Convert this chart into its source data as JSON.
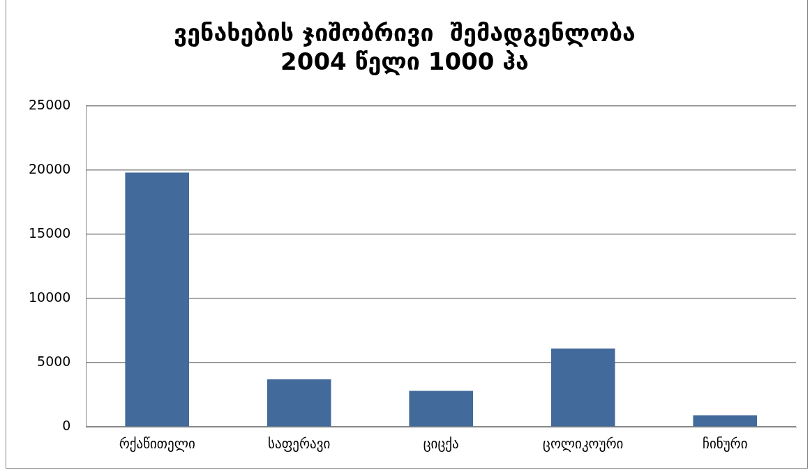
{
  "chart_data": {
    "type": "bar",
    "title": "ვენახების ჯიშობრივი  შემადგენლობა\n2004 წელი 1000 ჰა",
    "categories": [
      "რქაწითელი",
      "საფერავი",
      "ციცქა",
      "ცოლიკოური",
      "ჩინური"
    ],
    "values": [
      19800,
      3700,
      2800,
      6100,
      900
    ],
    "color": "#426a9a",
    "ylim": [
      0,
      25000
    ],
    "yticks": [
      0,
      5000,
      10000,
      15000,
      20000,
      25000
    ],
    "grid": "y",
    "legend": false
  }
}
